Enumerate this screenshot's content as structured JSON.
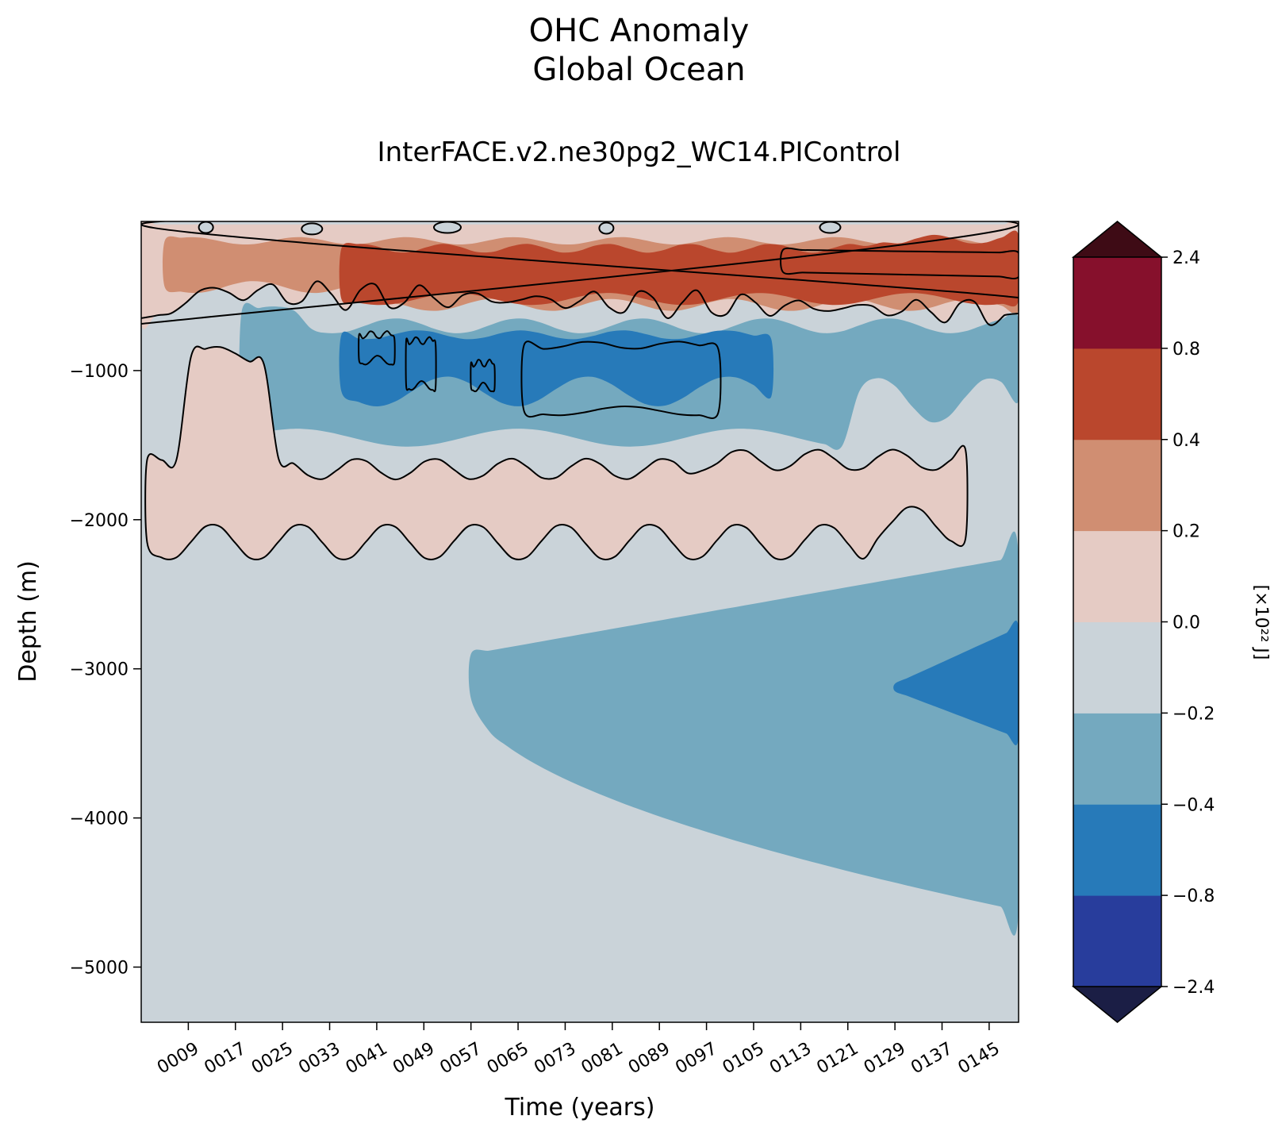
{
  "chart_data": {
    "type": "heatmap",
    "subtype": "filled-contour",
    "title": [
      "OHC Anomaly",
      "Global Ocean"
    ],
    "subtitle": "InterFACE.v2.ne30pg2_WC14.PIControl",
    "xlabel": "Time (years)",
    "ylabel": "Depth (m)",
    "xlim": [
      1,
      150
    ],
    "ylim": [
      -5370,
      0
    ],
    "xticks": [
      9,
      17,
      25,
      33,
      41,
      49,
      57,
      65,
      73,
      81,
      89,
      97,
      105,
      113,
      121,
      129,
      137,
      145
    ],
    "xtick_labels": [
      "0009",
      "0017",
      "0025",
      "0033",
      "0041",
      "0049",
      "0057",
      "0065",
      "0073",
      "0081",
      "0089",
      "0097",
      "0105",
      "0113",
      "0121",
      "0129",
      "0137",
      "0145"
    ],
    "yticks": [
      -1000,
      -2000,
      -3000,
      -4000,
      -5000
    ],
    "ytick_labels": [
      "−1000",
      "−2000",
      "−3000",
      "−4000",
      "−5000"
    ],
    "colorbar": {
      "label": "[×10²² J]",
      "levels": [
        -2.4,
        -0.8,
        -0.4,
        -0.2,
        0.0,
        0.2,
        0.4,
        0.8,
        2.4
      ],
      "tick_labels": [
        "−2.4",
        "−0.8",
        "−0.4",
        "−0.2",
        "0.0",
        "0.2",
        "0.4",
        "0.8",
        "2.4"
      ],
      "colors": [
        "#283d9c",
        "#277ab9",
        "#74a9bf",
        "#cad3d9",
        "#e5cbc4",
        "#d08e72",
        "#ba472d",
        "#86102c"
      ],
      "extend_low_color": "#1b1e45",
      "extend_high_color": "#3e0b15"
    },
    "regions": [
      {
        "name": "near-surface cool patches",
        "level": -0.2,
        "t": [
          1,
          40
        ],
        "depth": [
          -100,
          0
        ]
      },
      {
        "name": "upper warm band",
        "level": 0.2,
        "t": [
          1,
          150
        ],
        "depth": [
          -720,
          -30
        ]
      },
      {
        "name": "upper warm core",
        "level": 0.4,
        "t": [
          5,
          150
        ],
        "depth": [
          -600,
          -130
        ]
      },
      {
        "name": "upper strong warming",
        "level": 0.6,
        "t": [
          35,
          150
        ],
        "depth": [
          -560,
          -170
        ]
      },
      {
        "name": "mid-depth cooling",
        "level": -0.3,
        "t": [
          18,
          150
        ],
        "depth": [
          -1570,
          -560
        ]
      },
      {
        "name": "mid-depth cooling core",
        "level": -0.6,
        "t": [
          35,
          108
        ],
        "depth": [
          -1330,
          -740
        ]
      },
      {
        "name": "intermediate warm tongue",
        "level": 0.1,
        "t": [
          2,
          141
        ],
        "depth": [
          -2400,
          -1510
        ]
      },
      {
        "name": "deep cooling",
        "level": -0.3,
        "t": [
          57,
          150
        ],
        "depth": [
          -4600,
          -2260
        ]
      },
      {
        "name": "deep cooling core",
        "level": -0.6,
        "t": [
          129,
          150
        ],
        "depth": [
          -3460,
          -2710
        ]
      }
    ]
  }
}
